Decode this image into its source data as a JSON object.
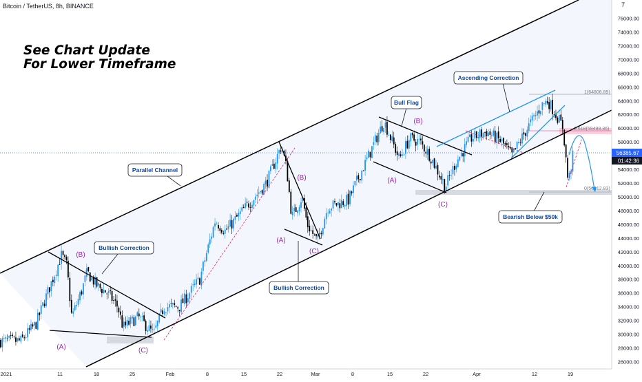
{
  "header": {
    "symbol_title": "Bitcoin / TetherUS, 8h, BINANCE"
  },
  "headline": {
    "line1": "See Chart Update",
    "line2": "For Lower Timeframe"
  },
  "price_axis": {
    "ticks": [
      "76000.00",
      "74000.00",
      "72000.00",
      "70000.00",
      "68000.00",
      "66000.00",
      "64000.00",
      "62000.00",
      "60000.00",
      "58000.00",
      "56000.00",
      "54000.00",
      "52000.00",
      "50000.00",
      "48000.00",
      "46000.00",
      "44000.00",
      "42000.00",
      "40000.00",
      "38000.00",
      "36000.00",
      "34000.00",
      "32000.00",
      "30000.00",
      "28000.00",
      "26000.00"
    ],
    "last_price": "56385.67",
    "countdown": "01:42:36",
    "top_partial": "7"
  },
  "time_axis": {
    "labels": [
      "2021",
      "11",
      "18",
      "25",
      "Feb",
      "8",
      "15",
      "22",
      "Mar",
      "8",
      "15",
      "22",
      "Apr",
      "12",
      "19"
    ]
  },
  "annotations": {
    "parallel_channel": "Parallel Channel",
    "bullish_correction_1": "Bullish Correction",
    "bullish_correction_2": "Bullish Correction",
    "bull_flag": "Bull Flag",
    "ascending_correction": "Ascending Correction",
    "bearish_below": "Bearish Below $50k",
    "fib_1": "1(64806.89)",
    "fib_618": "0.618(59499.36)",
    "fib_0": "0(50612.83)"
  },
  "wave_labels": {
    "a1": "(A)",
    "b1": "(B)",
    "c1": "(C)",
    "a2": "(A)",
    "b2": "(B)",
    "c2": "(C)",
    "a3": "(A)",
    "b3": "(B)",
    "c3": "(C)"
  },
  "colors": {
    "up": "#2196f3",
    "down": "#000000",
    "wave_label": "#9c27b0",
    "fib_zone": "#f8bbd0",
    "support_zone": "#d1d4dc",
    "channel": "#000000",
    "price_label_bg": "#2962ff",
    "countdown_bg": "#131722",
    "correction_line": "#2196f3",
    "projection": "#2196f3"
  },
  "chart_data": {
    "type": "candlestick",
    "title": "Bitcoin / TetherUS, 8h, BINANCE",
    "timeframe": "8h",
    "ylim": [
      26000,
      77000
    ],
    "y_scale": "linear",
    "grid": false,
    "x_tick_labels": [
      "2021",
      "11",
      "18",
      "25",
      "Feb",
      "8",
      "15",
      "22",
      "Mar",
      "8",
      "15",
      "22",
      "Apr",
      "12",
      "19"
    ],
    "last_price": 56385.67,
    "fib_levels": [
      {
        "ratio": 1,
        "price": 64806.89
      },
      {
        "ratio": 0.618,
        "price": 59499.36
      },
      {
        "ratio": 0,
        "price": 50612.83
      }
    ],
    "price_path": [
      {
        "date": "2021-01-01",
        "price": 29000
      },
      {
        "date": "2021-01-04",
        "price": 31500
      },
      {
        "date": "2021-01-07",
        "price": 37500
      },
      {
        "date": "2021-01-09",
        "price": 41500
      },
      {
        "date": "2021-01-10",
        "price": 40000
      },
      {
        "date": "2021-01-11",
        "price": 32500
      },
      {
        "date": "2021-01-13",
        "price": 36500
      },
      {
        "date": "2021-01-14",
        "price": 39000
      },
      {
        "date": "2021-01-16",
        "price": 37000
      },
      {
        "date": "2021-01-18",
        "price": 36000
      },
      {
        "date": "2021-01-20",
        "price": 34000
      },
      {
        "date": "2021-01-21",
        "price": 31000
      },
      {
        "date": "2021-01-24",
        "price": 32500
      },
      {
        "date": "2021-01-27",
        "price": 30000
      },
      {
        "date": "2021-01-29",
        "price": 34000
      },
      {
        "date": "2021-02-01",
        "price": 34000
      },
      {
        "date": "2021-02-05",
        "price": 38000
      },
      {
        "date": "2021-02-08",
        "price": 46500
      },
      {
        "date": "2021-02-10",
        "price": 45000
      },
      {
        "date": "2021-02-14",
        "price": 48500
      },
      {
        "date": "2021-02-18",
        "price": 52000
      },
      {
        "date": "2021-02-21",
        "price": 57500
      },
      {
        "date": "2021-02-22",
        "price": 54000
      },
      {
        "date": "2021-02-23",
        "price": 47000
      },
      {
        "date": "2021-02-25",
        "price": 50000
      },
      {
        "date": "2021-02-26",
        "price": 46000
      },
      {
        "date": "2021-02-28",
        "price": 43500
      },
      {
        "date": "2021-03-02",
        "price": 48500
      },
      {
        "date": "2021-03-06",
        "price": 49500
      },
      {
        "date": "2021-03-10",
        "price": 56000
      },
      {
        "date": "2021-03-13",
        "price": 61000
      },
      {
        "date": "2021-03-16",
        "price": 55500
      },
      {
        "date": "2021-03-18",
        "price": 58500
      },
      {
        "date": "2021-03-20",
        "price": 58000
      },
      {
        "date": "2021-03-22",
        "price": 56000
      },
      {
        "date": "2021-03-25",
        "price": 51500
      },
      {
        "date": "2021-03-27",
        "price": 55000
      },
      {
        "date": "2021-03-30",
        "price": 58500
      },
      {
        "date": "2021-04-02",
        "price": 59500
      },
      {
        "date": "2021-04-05",
        "price": 58000
      },
      {
        "date": "2021-04-07",
        "price": 56000
      },
      {
        "date": "2021-04-10",
        "price": 60000
      },
      {
        "date": "2021-04-13",
        "price": 63500
      },
      {
        "date": "2021-04-14",
        "price": 64000
      },
      {
        "date": "2021-04-16",
        "price": 61500
      },
      {
        "date": "2021-04-17",
        "price": 60000
      },
      {
        "date": "2021-04-18",
        "price": 52000
      },
      {
        "date": "2021-04-19",
        "price": 56385.67
      }
    ]
  }
}
